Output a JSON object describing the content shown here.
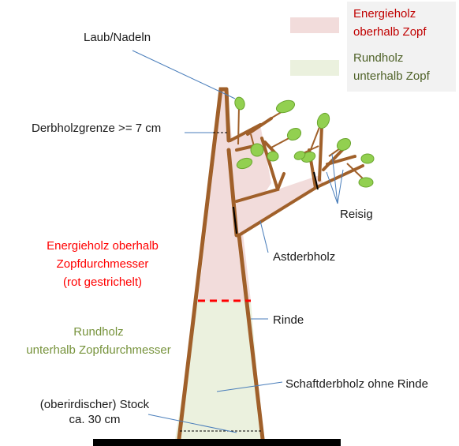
{
  "legend": [
    {
      "line1": "Energieholz",
      "line2": "oberhalb Zopf",
      "color": "#f2dcdb",
      "text_color": "#c00000"
    },
    {
      "line1": "Rundholz",
      "line2": "unterhalb Zopf",
      "color": "#ebf1de",
      "text_color": "#4f6228"
    }
  ],
  "labels": {
    "laub": "Laub/Nadeln",
    "derbholzgrenze": "Derbholzgrenze >= 7 cm",
    "reisig": "Reisig",
    "astderbholz": "Astderbholz",
    "rinde": "Rinde",
    "schaft": "Schaftderbholz ohne Rinde",
    "stock_line1": "(oberirdischer) Stock",
    "stock_line2": "ca. 30 cm"
  },
  "energie": {
    "line1": "Energieholz oberhalb",
    "line2": "Zopfdurchmesser",
    "line3": "(rot gestrichelt)"
  },
  "rund": {
    "line1": "Rundholz",
    "line2": "unterhalb Zopfdurchmesser"
  },
  "colors": {
    "bark": "#a0602a",
    "leaf": "#92d050",
    "leaf_stroke": "#6aa52e",
    "energie_fill": "#f2dcdb",
    "rund_fill": "#ebf1de",
    "zopf_line": "#ff0000",
    "callout": "#4a7ebb",
    "ground": "#000000",
    "energie_text": "#ff0000",
    "rund_text": "#77933c"
  }
}
